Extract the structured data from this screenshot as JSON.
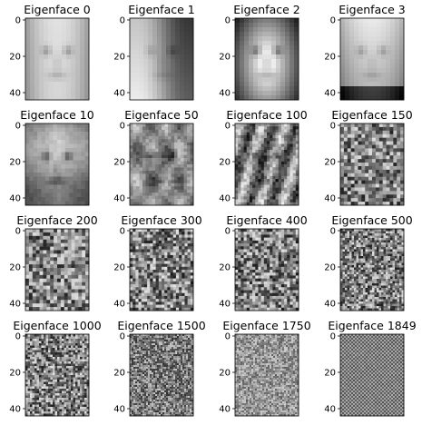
{
  "figure": {
    "description_grid": "4x4 eigenface images",
    "panels": [
      {
        "title": "Eigenface 0",
        "pattern": "face-smooth-light"
      },
      {
        "title": "Eigenface 1",
        "pattern": "face-gradient"
      },
      {
        "title": "Eigenface 2",
        "pattern": "face-dark-bg"
      },
      {
        "title": "Eigenface 3",
        "pattern": "face-bright-top"
      },
      {
        "title": "Eigenface 10",
        "pattern": "face-contrast"
      },
      {
        "title": "Eigenface 50",
        "pattern": "face-edges"
      },
      {
        "title": "Eigenface 100",
        "pattern": "face-edges-noisy"
      },
      {
        "title": "Eigenface 150",
        "pattern": "noise-coarse"
      },
      {
        "title": "Eigenface 200",
        "pattern": "noise-coarse"
      },
      {
        "title": "Eigenface 300",
        "pattern": "noise-medium"
      },
      {
        "title": "Eigenface 400",
        "pattern": "noise-medium"
      },
      {
        "title": "Eigenface 500",
        "pattern": "noise-fine"
      },
      {
        "title": "Eigenface 1000",
        "pattern": "noise-fine"
      },
      {
        "title": "Eigenface 1500",
        "pattern": "noise-very-fine"
      },
      {
        "title": "Eigenface 1750",
        "pattern": "noise-very-fine-light"
      },
      {
        "title": "Eigenface 1849",
        "pattern": "checker-fine"
      }
    ],
    "yticks": [
      "0",
      "20",
      "40"
    ]
  }
}
